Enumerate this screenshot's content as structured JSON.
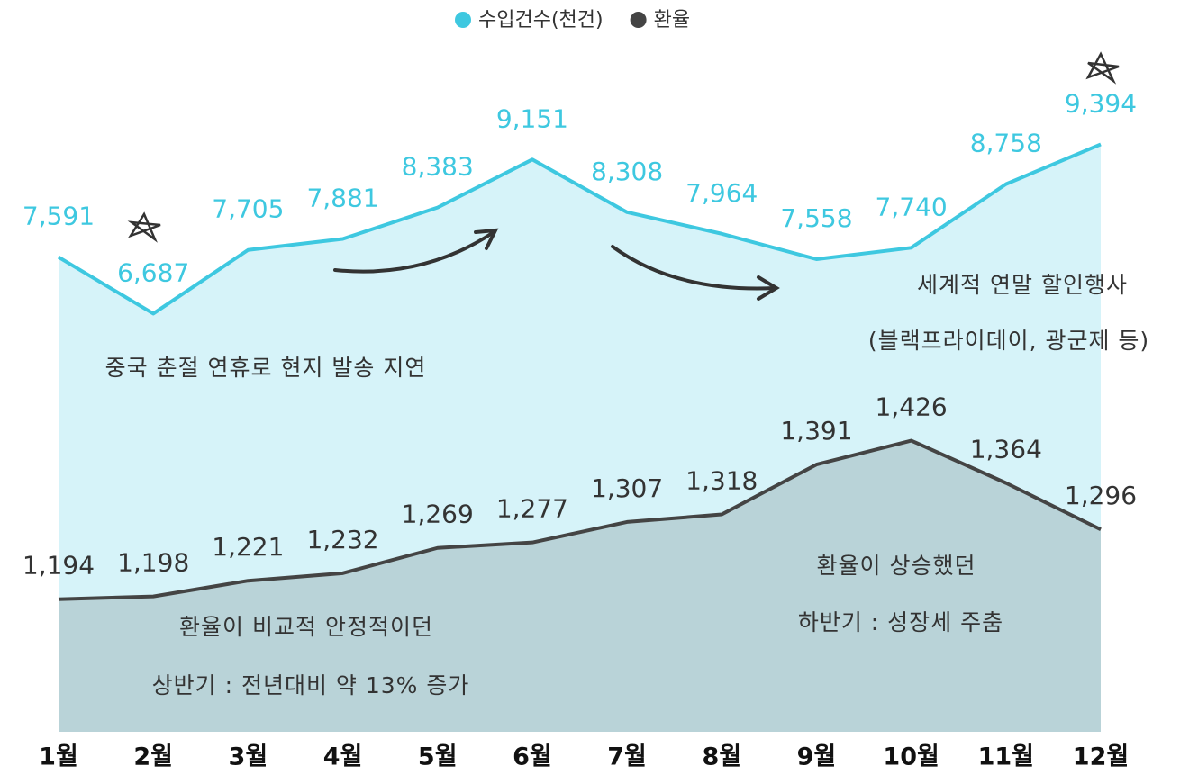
{
  "chart_data": {
    "type": "area",
    "categories": [
      "1월",
      "2월",
      "3월",
      "4월",
      "5월",
      "6월",
      "7월",
      "8월",
      "9월",
      "10월",
      "11월",
      "12월"
    ],
    "series": [
      {
        "name": "수입건수(천건)",
        "color": "#3ec8e0",
        "fill": "#d6f3f9",
        "values": [
          7591,
          6687,
          7705,
          7881,
          8383,
          9151,
          8308,
          7964,
          7558,
          7740,
          8758,
          9394
        ],
        "value_labels": [
          "7,591",
          "6,687",
          "7,705",
          "7,881",
          "8,383",
          "9,151",
          "8,308",
          "7,964",
          "7,558",
          "7,740",
          "8,758",
          "9,394"
        ]
      },
      {
        "name": "환율",
        "color": "#444444",
        "fill": "#b9d3d8",
        "axis": "y2",
        "values": [
          1194,
          1198,
          1221,
          1232,
          1269,
          1277,
          1307,
          1318,
          1391,
          1426,
          1364,
          1296
        ],
        "value_labels": [
          "1,194",
          "1,198",
          "1,221",
          "1,232",
          "1,269",
          "1,277",
          "1,307",
          "1,318",
          "1,391",
          "1,426",
          "1,364",
          "1,296"
        ]
      }
    ],
    "ylim": [
      0,
      9400
    ],
    "y2lim": [
      1000,
      1860
    ],
    "legend": "top",
    "annotations": [
      "중국 춘절 연휴로 현지 발송 지연",
      "세계적 연말 할인행사",
      "(블랙프라이데이, 광군제 등)",
      "환율이 비교적 안정적이던",
      "상반기 : 전년대비 약 13% 증가",
      "환율이 상승했던",
      "하반기 : 성장세 주춤"
    ]
  }
}
